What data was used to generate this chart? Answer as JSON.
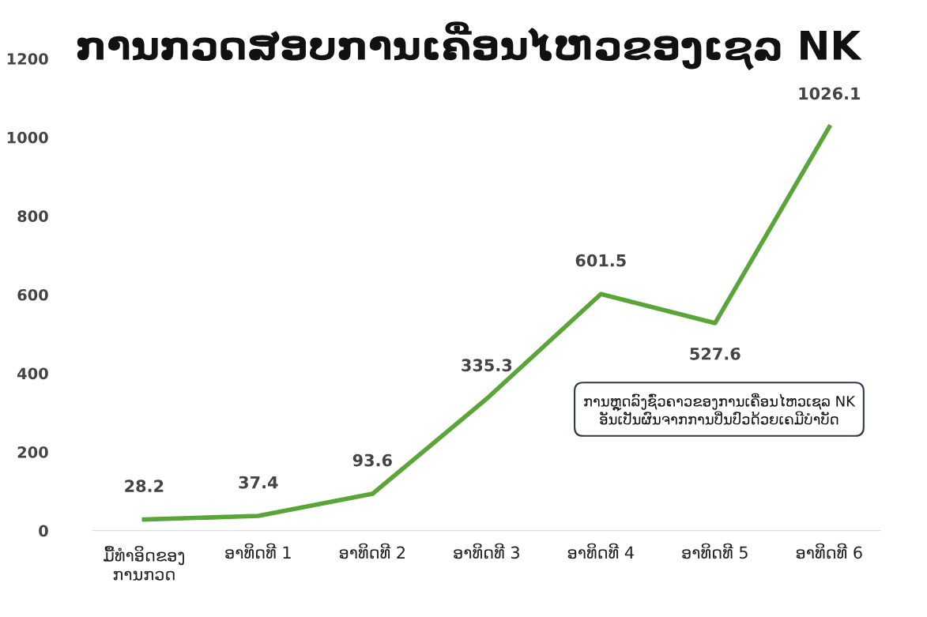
{
  "chart_data": {
    "type": "line",
    "title": "ການກວດສອບການເຄື່ອນໄຫວຂອງເຊລ NK",
    "categories": [
      "ມື້ທຳອິດຂອງ\nການກວດ",
      "ອາທິດທີ 1",
      "ອາທິດທີ 2",
      "ອາທິດທີ 3",
      "ອາທິດທີ 4",
      "ອາທິດທີ 5",
      "ອາທິດທີ 6"
    ],
    "series": [
      {
        "color": "#5aa537",
        "values": [
          28.2,
          37.4,
          93.6,
          335.3,
          601.5,
          527.6,
          1026.1
        ]
      }
    ],
    "ylim": [
      0,
      1200
    ],
    "yticks": [
      0,
      200,
      400,
      600,
      800,
      1000,
      1200
    ],
    "data_labels": true,
    "grid": false,
    "legend": false,
    "marker": "none",
    "line_style": "solid",
    "annotations": [
      "ການຫຼຸດລົງຊົ່ວຄາວຂອງການເຄື່ອນໄຫວເຊລ NK\nອັນເປັນຜົນຈາກການປິ່ນປົວດ້ວຍເຄມີບຳບັດ"
    ]
  }
}
